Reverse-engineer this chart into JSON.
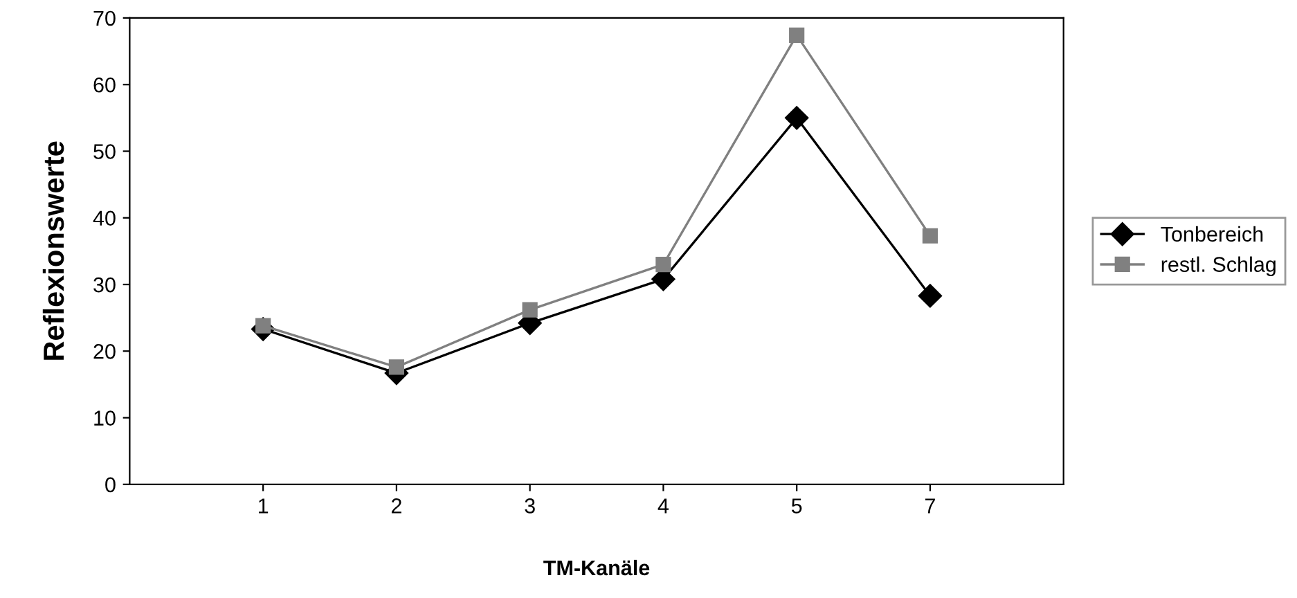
{
  "chart_data": {
    "type": "line",
    "xlabel": "TM-Kanäle",
    "ylabel": "Reflexionswerte",
    "categories": [
      "1",
      "2",
      "3",
      "4",
      "5",
      "7"
    ],
    "series": [
      {
        "name": "Tonbereich",
        "color": "#000000",
        "marker": "diamond",
        "values": [
          23.3,
          16.7,
          24.2,
          30.8,
          55,
          28.3
        ]
      },
      {
        "name": "restl. Schlag",
        "color": "#808080",
        "marker": "square",
        "values": [
          23.8,
          17.6,
          26.2,
          33,
          67.4,
          37.3
        ]
      }
    ],
    "ylim": [
      0,
      70
    ],
    "yticks": [
      0,
      10,
      20,
      30,
      40,
      50,
      60,
      70
    ],
    "grid": false,
    "legend": "right",
    "line_style": "solid"
  }
}
